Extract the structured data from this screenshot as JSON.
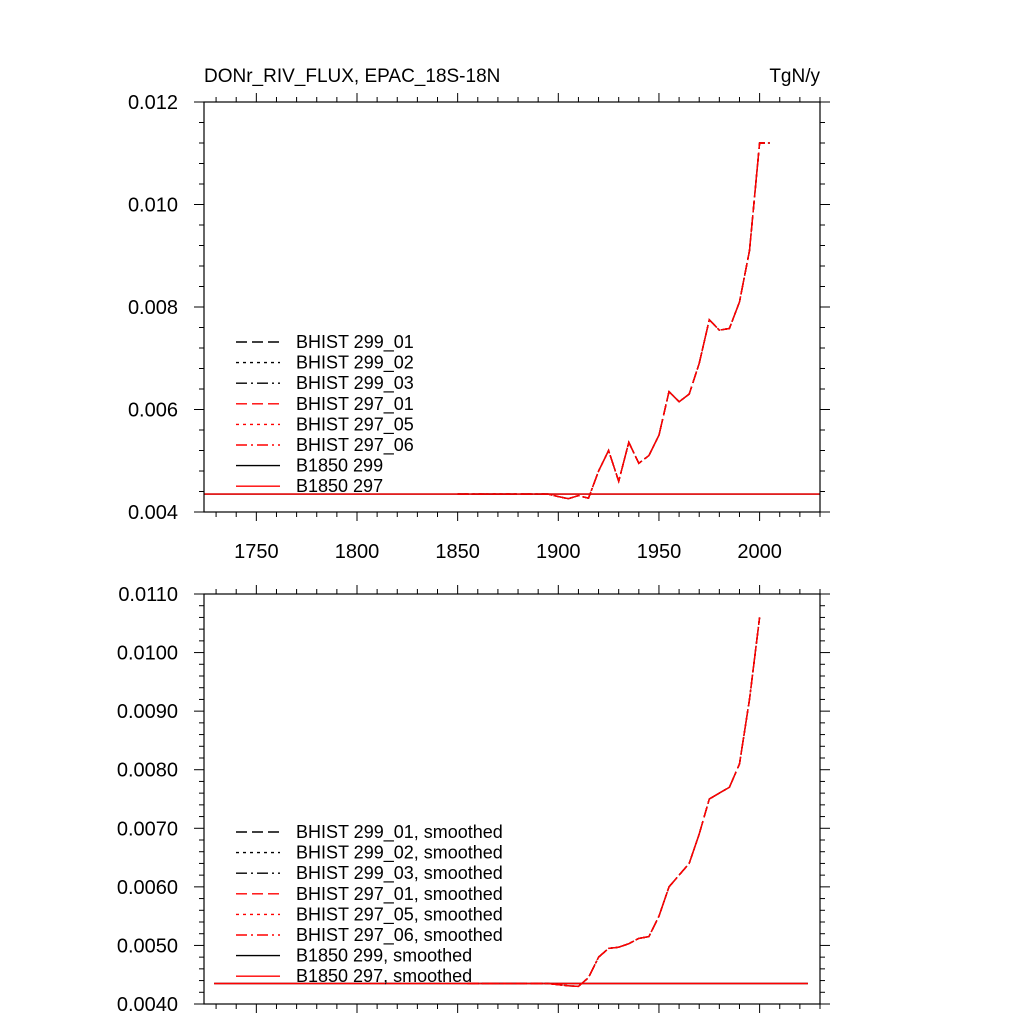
{
  "chart_data": [
    {
      "type": "line",
      "title": "DONr_RIV_FLUX, EPAC_18S-18N",
      "units": "TgN/y",
      "xlim": [
        1724,
        2030
      ],
      "ylim": [
        0.004,
        0.012
      ],
      "x_ticks": [
        1750,
        1800,
        1850,
        1900,
        1950,
        2000
      ],
      "x_tick_labels": [
        "1750",
        "1800",
        "1850",
        "1900",
        "1950",
        "2000"
      ],
      "y_ticks": [
        0.004,
        0.006,
        0.008,
        0.01,
        0.012
      ],
      "y_tick_labels": [
        "0.004",
        "0.006",
        "0.008",
        "0.010",
        "0.012"
      ],
      "show_x_tick_labels": true,
      "legend": "left-middle",
      "series": [
        {
          "name": "BHIST 299_01",
          "color": "#000000",
          "style": "dash"
        },
        {
          "name": "BHIST 299_02",
          "color": "#000000",
          "style": "dot"
        },
        {
          "name": "BHIST 299_03",
          "color": "#000000",
          "style": "dashdot"
        },
        {
          "name": "BHIST 297_01",
          "color": "#ff0000",
          "style": "dash"
        },
        {
          "name": "BHIST 297_05",
          "color": "#ff0000",
          "style": "dot"
        },
        {
          "name": "BHIST 297_06",
          "color": "#ff0000",
          "style": "dashdot"
        },
        {
          "name": "B1850 299",
          "color": "#000000",
          "style": "solid"
        },
        {
          "name": "B1850 297",
          "color": "#ff0000",
          "style": "solid"
        }
      ],
      "hist_x": [
        1850,
        1855,
        1860,
        1865,
        1870,
        1875,
        1880,
        1885,
        1890,
        1895,
        1900,
        1905,
        1910,
        1915,
        1920,
        1925,
        1930,
        1935,
        1940,
        1945,
        1950,
        1955,
        1960,
        1965,
        1970,
        1975,
        1980,
        1985,
        1990,
        1995,
        2000,
        2005
      ],
      "hist_y": [
        0.00435,
        0.00435,
        0.00435,
        0.00435,
        0.00435,
        0.00435,
        0.00435,
        0.00435,
        0.00435,
        0.00435,
        0.0043,
        0.00426,
        0.00432,
        0.00427,
        0.0048,
        0.0052,
        0.0046,
        0.00536,
        0.00495,
        0.0051,
        0.0055,
        0.00635,
        0.00615,
        0.0063,
        0.0069,
        0.00775,
        0.00755,
        0.00758,
        0.0081,
        0.0091,
        0.0112,
        0.0112
      ],
      "ctrl_x": [
        1724,
        2030
      ],
      "ctrl_y": [
        0.00435,
        0.00435
      ]
    },
    {
      "type": "line",
      "xlim": [
        1724,
        2030
      ],
      "ylim": [
        0.004,
        0.011
      ],
      "x_ticks": [
        1750,
        1800,
        1850,
        1900,
        1950,
        2000
      ],
      "y_ticks": [
        0.004,
        0.005,
        0.006,
        0.007,
        0.008,
        0.009,
        0.01,
        0.011
      ],
      "y_tick_labels": [
        "0.0040",
        "0.0050",
        "0.0060",
        "0.0070",
        "0.0080",
        "0.0090",
        "0.0100",
        "0.0110"
      ],
      "show_x_tick_labels": false,
      "legend": "left-bottom",
      "series": [
        {
          "name": "BHIST 299_01, smoothed",
          "color": "#000000",
          "style": "dash"
        },
        {
          "name": "BHIST 299_02, smoothed",
          "color": "#000000",
          "style": "dot"
        },
        {
          "name": "BHIST 299_03, smoothed",
          "color": "#000000",
          "style": "dashdot"
        },
        {
          "name": "BHIST 297_01, smoothed",
          "color": "#ff0000",
          "style": "dash"
        },
        {
          "name": "BHIST 297_05, smoothed",
          "color": "#ff0000",
          "style": "dot"
        },
        {
          "name": "BHIST 297_06, smoothed",
          "color": "#ff0000",
          "style": "dashdot"
        },
        {
          "name": "B1850 299, smoothed",
          "color": "#000000",
          "style": "solid"
        },
        {
          "name": "B1850 297, smoothed",
          "color": "#ff0000",
          "style": "solid"
        }
      ],
      "hist_x": [
        1855,
        1860,
        1870,
        1880,
        1890,
        1895,
        1900,
        1905,
        1910,
        1915,
        1920,
        1925,
        1930,
        1935,
        1940,
        1945,
        1950,
        1955,
        1960,
        1965,
        1970,
        1975,
        1980,
        1985,
        1990,
        1995,
        2000
      ],
      "hist_y": [
        0.00435,
        0.00435,
        0.00435,
        0.00435,
        0.00435,
        0.00435,
        0.00433,
        0.00431,
        0.0043,
        0.00445,
        0.0048,
        0.00495,
        0.00497,
        0.00503,
        0.00512,
        0.00515,
        0.0055,
        0.006,
        0.0062,
        0.0064,
        0.0069,
        0.0075,
        0.0076,
        0.0077,
        0.0081,
        0.0092,
        0.0106
      ],
      "ctrl_x": [
        1729,
        2024
      ],
      "ctrl_y": [
        0.00435,
        0.00435
      ]
    }
  ]
}
